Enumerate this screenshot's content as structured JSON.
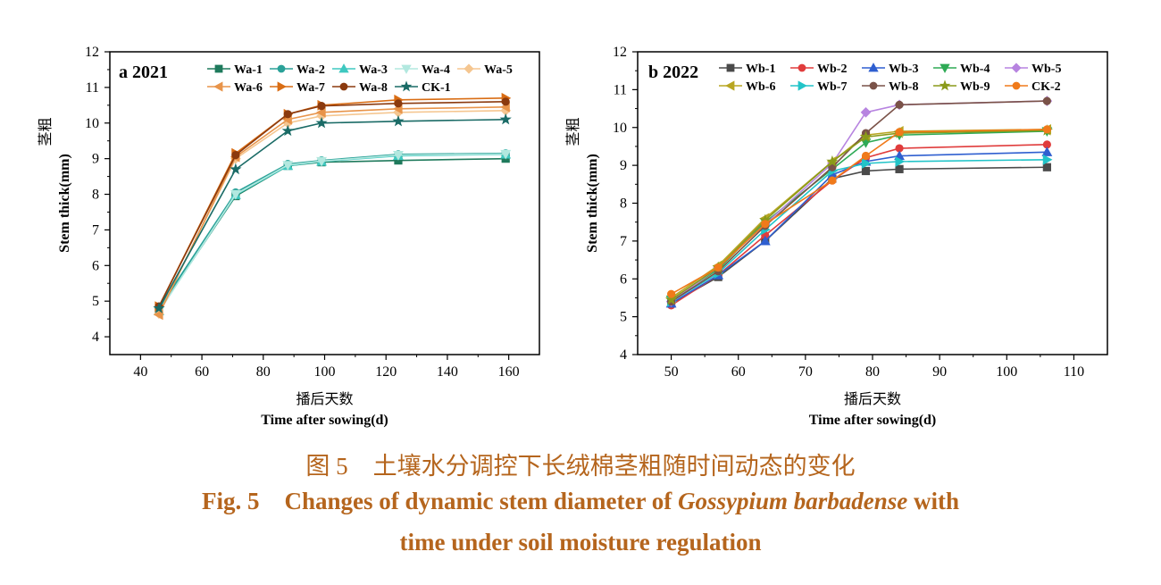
{
  "chart_data": [
    {
      "type": "line",
      "panel_label": "a 2021",
      "xlabel_cn": "播后天数",
      "xlabel": "Time after sowing(d)",
      "ylabel_cn": "茎粗",
      "ylabel": "Stem thick(mm)",
      "xlim": [
        30,
        170
      ],
      "ylim": [
        3.5,
        12
      ],
      "xticks": [
        40,
        60,
        80,
        100,
        120,
        140,
        160
      ],
      "yticks": [
        4,
        5,
        6,
        7,
        8,
        9,
        10,
        11,
        12
      ],
      "legend": "top",
      "grid": false,
      "x": [
        46,
        71,
        88,
        99,
        124,
        159
      ],
      "series": [
        {
          "name": "Wa-1",
          "color": "#1f7a5c",
          "marker": "square",
          "values": [
            4.75,
            7.95,
            8.8,
            8.9,
            8.95,
            9.0
          ]
        },
        {
          "name": "Wa-2",
          "color": "#2aa198",
          "marker": "circle",
          "values": [
            4.8,
            8.05,
            8.85,
            8.95,
            9.12,
            9.15
          ]
        },
        {
          "name": "Wa-3",
          "color": "#3ec8c0",
          "marker": "triangle-up",
          "values": [
            4.72,
            7.98,
            8.8,
            8.92,
            9.08,
            9.12
          ]
        },
        {
          "name": "Wa-4",
          "color": "#b2e8df",
          "marker": "triangle-down",
          "values": [
            4.7,
            8.0,
            8.82,
            8.93,
            9.1,
            9.13
          ]
        },
        {
          "name": "Wa-5",
          "color": "#f5c690",
          "marker": "diamond",
          "values": [
            4.65,
            9.0,
            10.0,
            10.2,
            10.3,
            10.35
          ]
        },
        {
          "name": "Wa-6",
          "color": "#e8944a",
          "marker": "triangle-left",
          "values": [
            4.62,
            9.05,
            10.1,
            10.3,
            10.4,
            10.45
          ]
        },
        {
          "name": "Wa-7",
          "color": "#d96d14",
          "marker": "triangle-right",
          "values": [
            4.85,
            9.15,
            10.25,
            10.5,
            10.65,
            10.7
          ]
        },
        {
          "name": "Wa-8",
          "color": "#8b3a0e",
          "marker": "circle",
          "values": [
            4.85,
            9.1,
            10.25,
            10.48,
            10.55,
            10.6
          ]
        },
        {
          "name": "CK-1",
          "color": "#1a6b66",
          "marker": "star",
          "values": [
            4.8,
            8.7,
            9.78,
            10.0,
            10.05,
            10.1
          ]
        }
      ]
    },
    {
      "type": "line",
      "panel_label": "b 2022",
      "xlabel_cn": "播后天数",
      "xlabel": "Time after sowing(d)",
      "ylabel_cn": "茎粗",
      "ylabel": "Stem thick(mm)",
      "xlim": [
        45,
        115
      ],
      "ylim": [
        4,
        12
      ],
      "xticks": [
        50,
        60,
        70,
        80,
        90,
        100,
        110
      ],
      "yticks": [
        4,
        5,
        6,
        7,
        8,
        9,
        10,
        11,
        12
      ],
      "legend": "top",
      "grid": false,
      "x": [
        50,
        57,
        64,
        74,
        79,
        84,
        106
      ],
      "series": [
        {
          "name": "Wb-1",
          "color": "#4a4a4a",
          "marker": "square",
          "values": [
            5.35,
            6.05,
            7.0,
            8.65,
            8.85,
            8.9,
            8.95
          ]
        },
        {
          "name": "Wb-2",
          "color": "#e03c3c",
          "marker": "circle",
          "values": [
            5.3,
            6.1,
            7.15,
            8.6,
            9.2,
            9.45,
            9.55
          ]
        },
        {
          "name": "Wb-3",
          "color": "#2f5fd0",
          "marker": "triangle-up",
          "values": [
            5.35,
            6.1,
            7.0,
            8.75,
            9.1,
            9.25,
            9.35
          ]
        },
        {
          "name": "Wb-4",
          "color": "#2eaa55",
          "marker": "triangle-down",
          "values": [
            5.45,
            6.25,
            7.5,
            8.9,
            9.6,
            9.8,
            9.9
          ]
        },
        {
          "name": "Wb-5",
          "color": "#b784e0",
          "marker": "diamond",
          "values": [
            5.4,
            6.3,
            7.45,
            9.05,
            10.4,
            10.6,
            10.7
          ]
        },
        {
          "name": "Wb-6",
          "color": "#b8a622",
          "marker": "triangle-left",
          "values": [
            5.5,
            6.35,
            7.6,
            9.1,
            9.8,
            9.9,
            9.95
          ]
        },
        {
          "name": "Wb-7",
          "color": "#22c4c8",
          "marker": "triangle-right",
          "values": [
            5.4,
            6.15,
            7.3,
            8.85,
            9.05,
            9.1,
            9.15
          ]
        },
        {
          "name": "Wb-8",
          "color": "#7a5248",
          "marker": "circle",
          "values": [
            5.4,
            6.2,
            7.4,
            8.95,
            9.85,
            10.6,
            10.7
          ]
        },
        {
          "name": "Wb-9",
          "color": "#8a9a1a",
          "marker": "star",
          "values": [
            5.45,
            6.3,
            7.55,
            9.1,
            9.75,
            9.85,
            9.92
          ]
        },
        {
          "name": "CK-2",
          "color": "#f07a1a",
          "marker": "circle",
          "values": [
            5.6,
            6.3,
            7.45,
            8.6,
            9.25,
            9.88,
            9.95
          ]
        }
      ]
    }
  ],
  "caption": {
    "cn_fig": "图 5",
    "cn_text": "土壤水分调控下长绒棉茎粗随时间动态的变化",
    "en_fig": "Fig. 5",
    "en_text_a": "Changes of dynamic stem diameter of ",
    "en_species": "Gossypium barbadense",
    "en_text_b": " with",
    "en_line2": "time under soil moisture regulation"
  }
}
